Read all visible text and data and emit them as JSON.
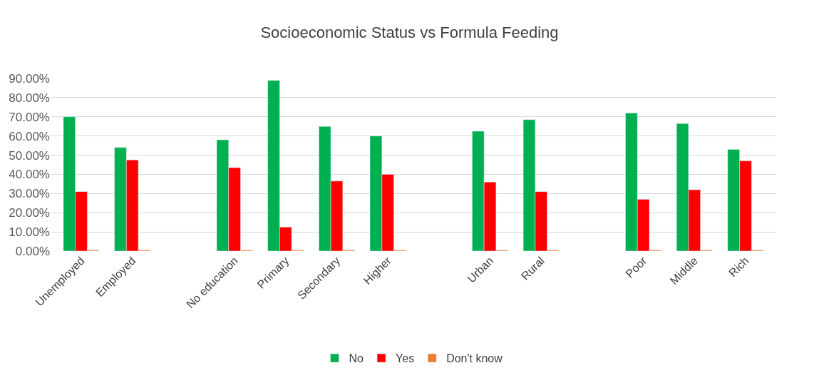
{
  "chart_data": {
    "type": "bar",
    "title": "Socioeconomic Status vs Formula Feeding",
    "categories": [
      "Unemployed",
      "Employed",
      null,
      "No education",
      "Primary",
      "Secondary",
      "Higher",
      null,
      "Urban",
      "Rural",
      null,
      "Poor",
      "Middle",
      "Rich"
    ],
    "series": [
      {
        "name": "No",
        "color": "#00b050",
        "values": [
          70,
          54,
          null,
          58,
          89,
          65,
          60,
          null,
          62.5,
          68.5,
          null,
          72,
          66.5,
          53
        ]
      },
      {
        "name": "Yes",
        "color": "#ff0000",
        "values": [
          31,
          47.5,
          null,
          43.5,
          12.5,
          36.5,
          40,
          null,
          36,
          31,
          null,
          27,
          32,
          47
        ]
      },
      {
        "name": "Don't know",
        "color": "#ed7d31",
        "values": [
          0.5,
          0.5,
          null,
          0.5,
          0.5,
          0.5,
          0.5,
          null,
          0.5,
          0.5,
          null,
          0.5,
          0.5,
          0.5
        ]
      }
    ],
    "ylim": [
      0,
      90
    ],
    "yticks": [
      {
        "value": 0,
        "label": "0.00%"
      },
      {
        "value": 10,
        "label": "10.00%"
      },
      {
        "value": 20,
        "label": "20.00%"
      },
      {
        "value": 30,
        "label": "30.00%"
      },
      {
        "value": 40,
        "label": "40.00%"
      },
      {
        "value": 50,
        "label": "50.00%"
      },
      {
        "value": 60,
        "label": "60.00%"
      },
      {
        "value": 70,
        "label": "70.00%"
      },
      {
        "value": 80,
        "label": "80.00%"
      },
      {
        "value": 90,
        "label": "90.00%"
      }
    ],
    "grid": "y",
    "legend": "bottom"
  }
}
